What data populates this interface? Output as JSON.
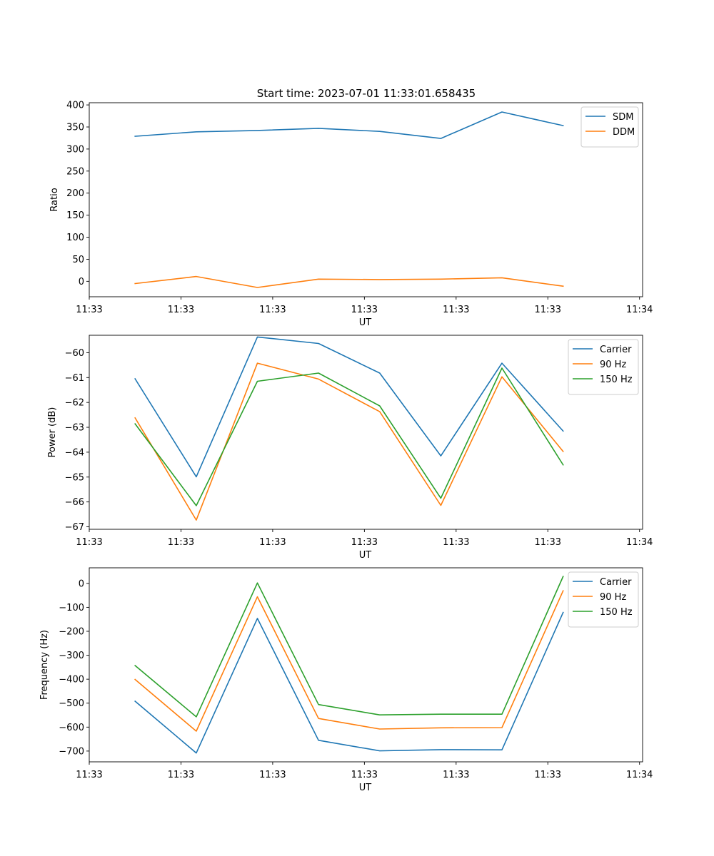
{
  "figure": {
    "title": "Start time: 2023-07-01 11:33:01.658435"
  },
  "colors": {
    "blue": "#1f77b4",
    "orange": "#ff7f0e",
    "green": "#2ca02c"
  },
  "chart_data": [
    {
      "type": "line",
      "xlabel": "UT",
      "ylabel": "Ratio",
      "x": [
        1,
        2,
        3,
        4,
        5,
        6,
        7,
        8
      ],
      "xlim": [
        0.25,
        9.3
      ],
      "xticks": [
        0.25,
        1.75,
        3.25,
        4.75,
        6.25,
        7.75,
        9.25
      ],
      "xtick_labels": [
        "11:33",
        "11:33",
        "11:33",
        "11:33",
        "11:33",
        "11:33",
        "11:34"
      ],
      "ylim": [
        -35,
        405
      ],
      "yticks": [
        0,
        50,
        100,
        150,
        200,
        250,
        300,
        350,
        400
      ],
      "ytick_labels": [
        "0",
        "50",
        "100",
        "150",
        "200",
        "250",
        "300",
        "350",
        "400"
      ],
      "legend": "top-right",
      "series": [
        {
          "name": "SDM",
          "color": "#1f77b4",
          "values": [
            329,
            339,
            342,
            347,
            340,
            324,
            384,
            353
          ]
        },
        {
          "name": "DDM",
          "color": "#ff7f0e",
          "values": [
            -5,
            11,
            -14,
            5,
            4,
            5,
            8,
            -11
          ]
        }
      ]
    },
    {
      "type": "line",
      "xlabel": "UT",
      "ylabel": "Power (dB)",
      "x": [
        1,
        2,
        3,
        4,
        5,
        6,
        7,
        8
      ],
      "xlim": [
        0.25,
        9.3
      ],
      "xticks": [
        0.25,
        1.75,
        3.25,
        4.75,
        6.25,
        7.75,
        9.25
      ],
      "xtick_labels": [
        "11:33",
        "11:33",
        "11:33",
        "11:33",
        "11:33",
        "11:33",
        "11:34"
      ],
      "ylim": [
        -67.1,
        -59.3
      ],
      "yticks": [
        -67,
        -66,
        -65,
        -64,
        -63,
        -62,
        -61,
        -60
      ],
      "ytick_labels": [
        "−67",
        "−66",
        "−65",
        "−64",
        "−63",
        "−62",
        "−61",
        "−60"
      ],
      "legend": "top-right",
      "series": [
        {
          "name": "Carrier",
          "color": "#1f77b4",
          "values": [
            -61.05,
            -64.99,
            -59.37,
            -59.63,
            -60.82,
            -64.15,
            -60.42,
            -63.15
          ]
        },
        {
          "name": "90 Hz",
          "color": "#ff7f0e",
          "values": [
            -62.62,
            -66.73,
            -60.42,
            -61.06,
            -62.37,
            -66.14,
            -60.97,
            -63.97
          ]
        },
        {
          "name": "150 Hz",
          "color": "#2ca02c",
          "values": [
            -62.86,
            -66.15,
            -61.15,
            -60.82,
            -62.14,
            -65.85,
            -60.62,
            -64.51
          ]
        }
      ]
    },
    {
      "type": "line",
      "xlabel": "UT",
      "ylabel": "Frequency (Hz)",
      "x": [
        1,
        2,
        3,
        4,
        5,
        6,
        7,
        8
      ],
      "xlim": [
        0.25,
        9.3
      ],
      "xticks": [
        0.25,
        1.75,
        3.25,
        4.75,
        6.25,
        7.75,
        9.25
      ],
      "xtick_labels": [
        "11:33",
        "11:33",
        "11:33",
        "11:33",
        "11:33",
        "11:33",
        "11:34"
      ],
      "ylim": [
        -745,
        65
      ],
      "yticks": [
        -700,
        -600,
        -500,
        -400,
        -300,
        -200,
        -100,
        0
      ],
      "ytick_labels": [
        "−700",
        "−600",
        "−500",
        "−400",
        "−300",
        "−200",
        "−100",
        "0"
      ],
      "legend": "top-right",
      "series": [
        {
          "name": "Carrier",
          "color": "#1f77b4",
          "values": [
            -492,
            -708,
            -146,
            -655,
            -699,
            -694,
            -695,
            -121
          ]
        },
        {
          "name": "90 Hz",
          "color": "#ff7f0e",
          "values": [
            -401,
            -617,
            -56,
            -564,
            -608,
            -603,
            -602,
            -31
          ]
        },
        {
          "name": "150 Hz",
          "color": "#2ca02c",
          "values": [
            -343,
            -557,
            2,
            -506,
            -549,
            -546,
            -546,
            29
          ]
        }
      ]
    }
  ]
}
